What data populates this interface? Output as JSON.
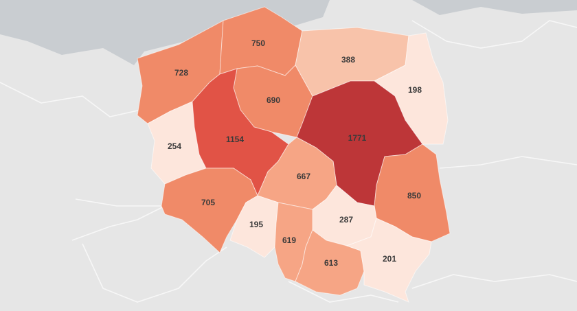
{
  "map": {
    "colors": {
      "background_land": "#e6e6e6",
      "sea": "#c9cdd1",
      "label": "#3a3a3a"
    },
    "regions": [
      {
        "id": "zachodniopomorskie",
        "value": "728",
        "color": "#f08a68"
      },
      {
        "id": "pomorskie",
        "value": "750",
        "color": "#f08a68"
      },
      {
        "id": "warminsko-mazurskie",
        "value": "388",
        "color": "#f8c3aa"
      },
      {
        "id": "podlaskie",
        "value": "198",
        "color": "#fde6dc"
      },
      {
        "id": "kujawsko-pomorskie",
        "value": "690",
        "color": "#f08a68"
      },
      {
        "id": "lubuskie",
        "value": "254",
        "color": "#fde6dc"
      },
      {
        "id": "wielkopolskie",
        "value": "1154",
        "color": "#e15346"
      },
      {
        "id": "mazowieckie",
        "value": "1771",
        "color": "#bd3638"
      },
      {
        "id": "lodzkie",
        "value": "667",
        "color": "#f6a585"
      },
      {
        "id": "lubelskie",
        "value": "850",
        "color": "#f08a68"
      },
      {
        "id": "dolnoslaskie",
        "value": "705",
        "color": "#f08a68"
      },
      {
        "id": "opolskie",
        "value": "195",
        "color": "#fde6dc"
      },
      {
        "id": "swietokrzyskie",
        "value": "287",
        "color": "#fde6dc"
      },
      {
        "id": "slaskie",
        "value": "619",
        "color": "#f6a585"
      },
      {
        "id": "malopolskie",
        "value": "613",
        "color": "#f6a585"
      },
      {
        "id": "podkarpackie",
        "value": "201",
        "color": "#fde6dc"
      }
    ]
  }
}
